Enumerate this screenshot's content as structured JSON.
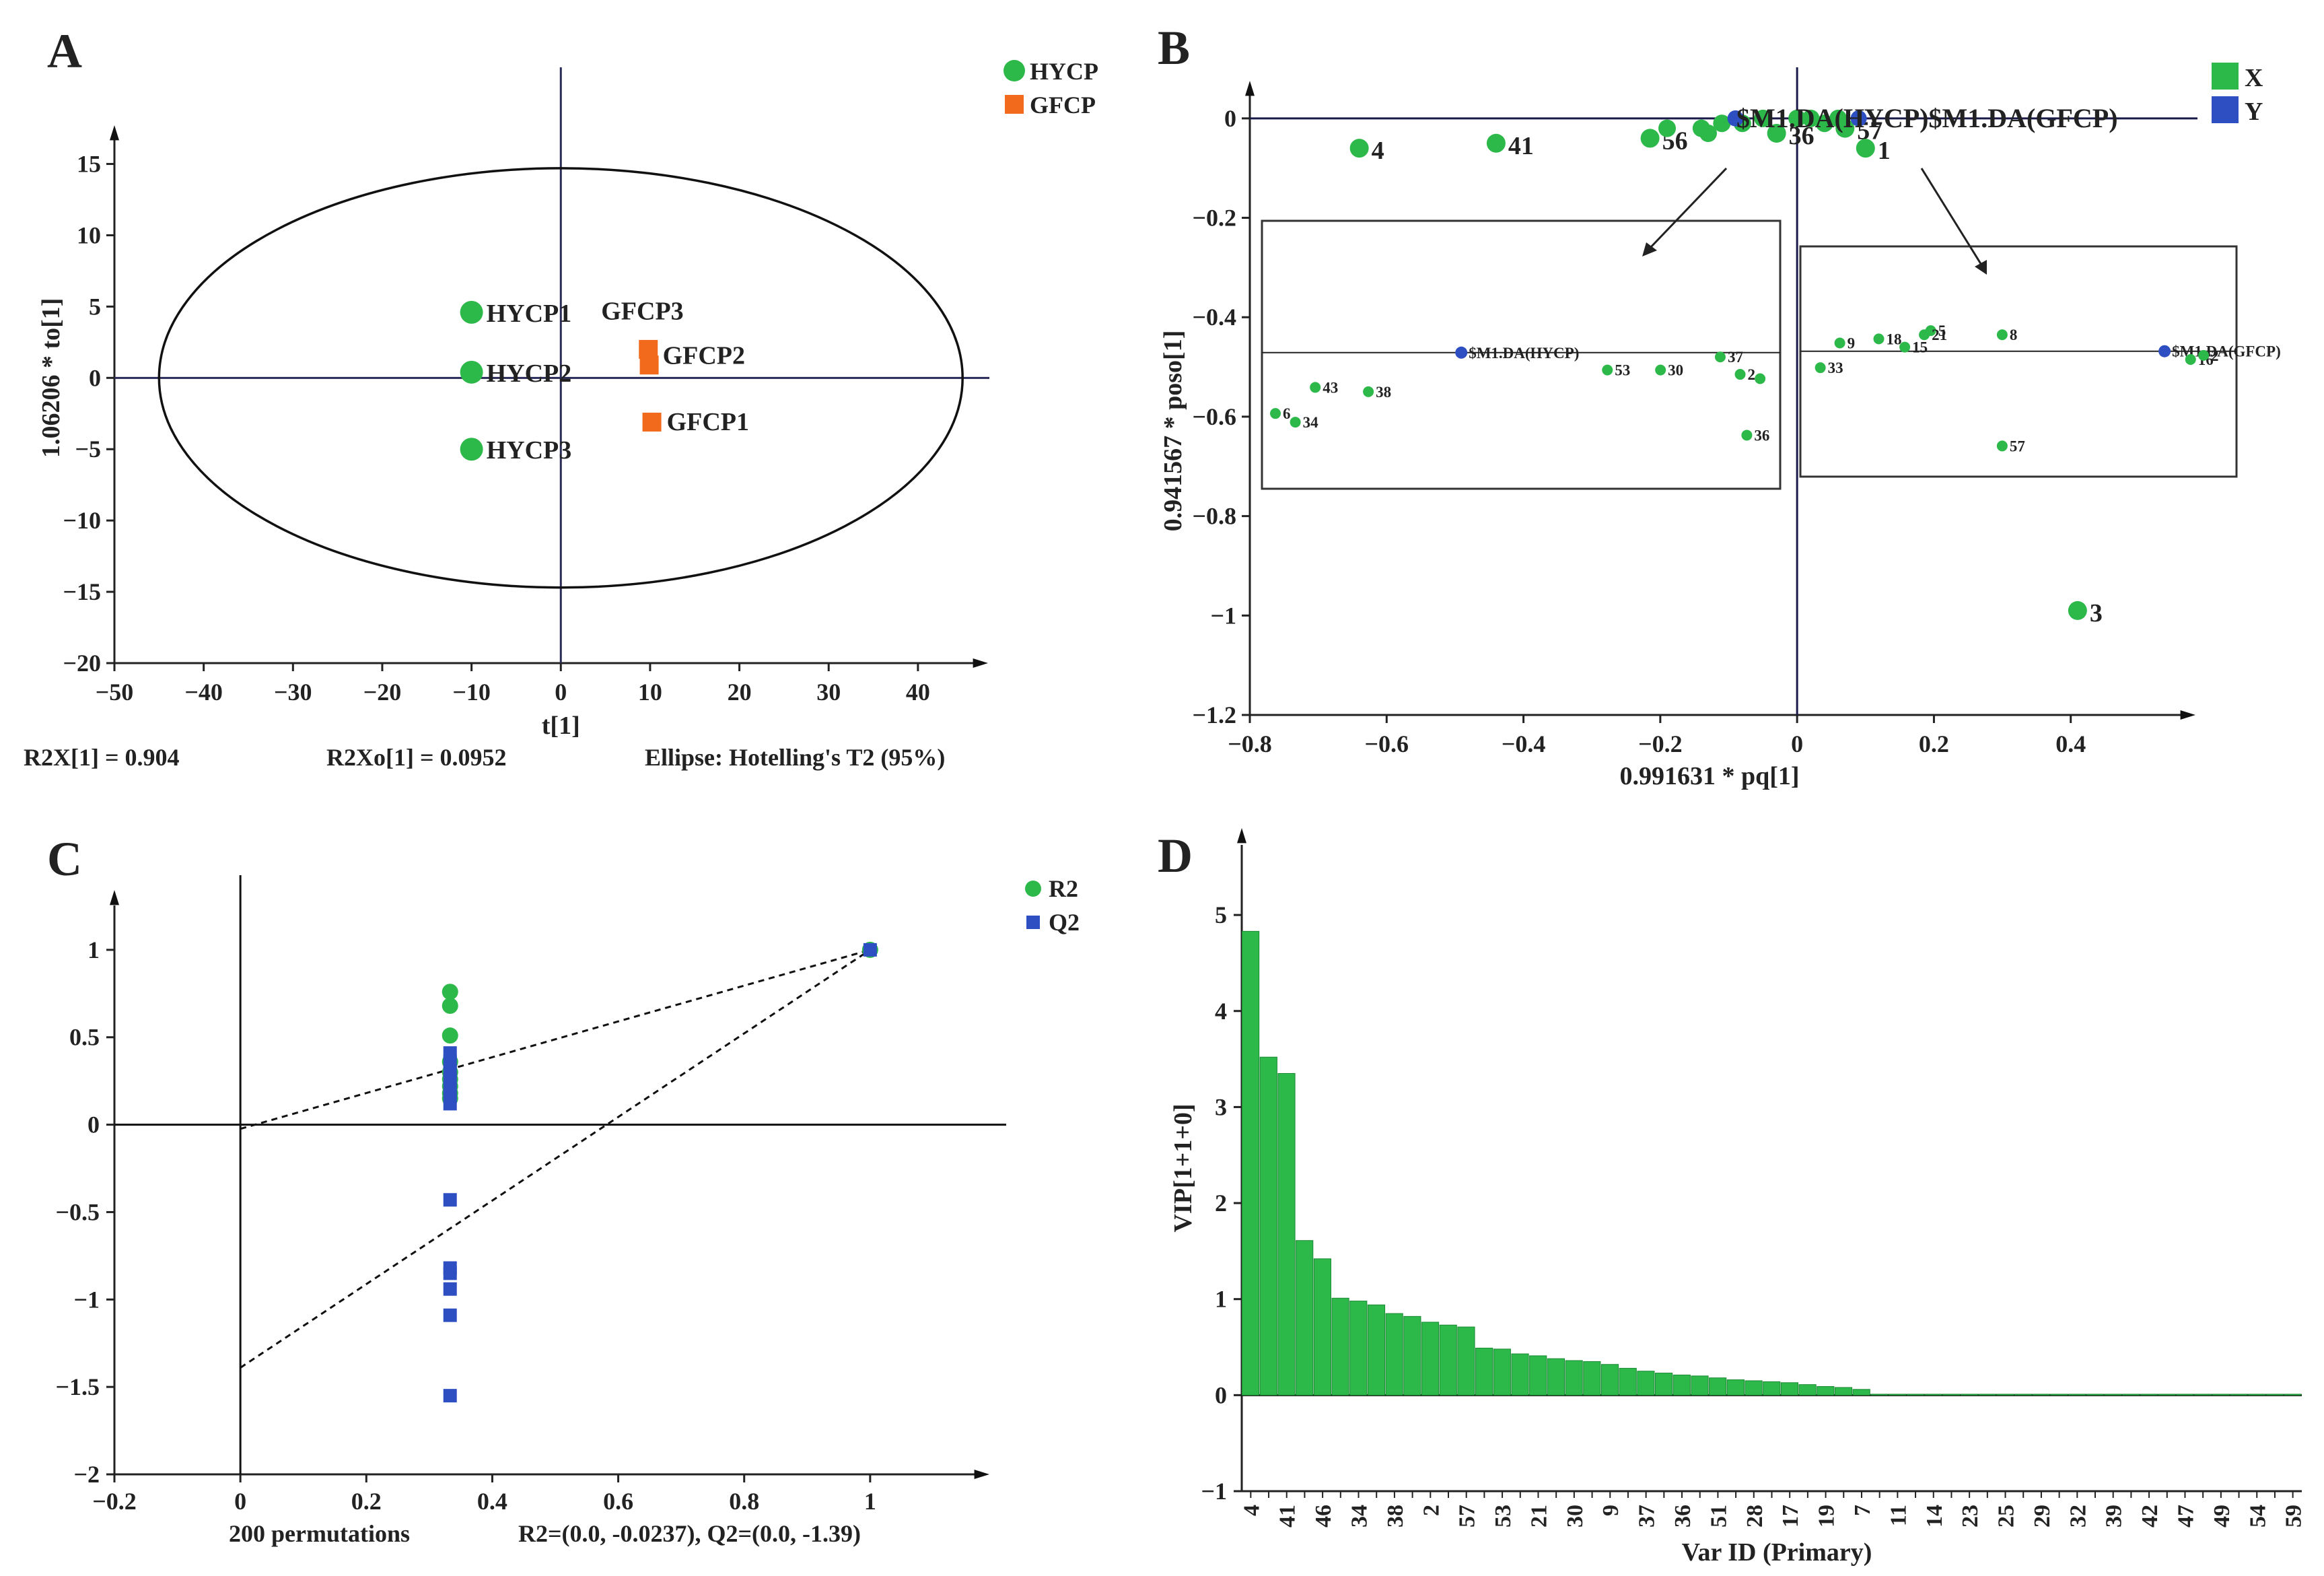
{
  "colors": {
    "green": "#2db84a",
    "green_dark": "#1f7f35",
    "orange": "#f26b1d",
    "orange_text": "#d2541a",
    "blue": "#2e4fc2",
    "blue_text": "#2a3f9a",
    "axis": "#222222",
    "box": "#333333"
  },
  "chart_data": [
    {
      "panel": "A",
      "type": "scatter",
      "xlabel": "t[1]",
      "ylabel": "1.06206 * to[1]",
      "xlim": [
        -50,
        48
      ],
      "ylim": [
        -20,
        18
      ],
      "xticks": [
        -50,
        -40,
        -30,
        -20,
        -10,
        0,
        10,
        20,
        30,
        40
      ],
      "xtick_labels": [
        "−50",
        "−40",
        "−30",
        "−20",
        "−10",
        "0",
        "10",
        "20",
        "30",
        "40"
      ],
      "yticks": [
        -20,
        -15,
        -10,
        -5,
        0,
        5,
        10,
        15
      ],
      "ytick_labels": [
        "−20",
        "−15",
        "−10",
        "−5",
        "0",
        "5",
        "10",
        "15"
      ],
      "ellipse": {
        "cx": 0,
        "cy": 0,
        "rx": 45,
        "ry": 14.7
      },
      "legend": [
        {
          "label": "HYCP",
          "marker": "circle",
          "color": "#2db84a"
        },
        {
          "label": "GFCP",
          "marker": "square",
          "color": "#f26b1d"
        }
      ],
      "series": [
        {
          "name": "HYCP",
          "marker": "circle",
          "points": [
            {
              "label": "HYCP1",
              "x": -10,
              "y": 4.6
            },
            {
              "label": "HYCP2",
              "x": -10,
              "y": 0.4
            },
            {
              "label": "HYCP3",
              "x": -10,
              "y": -5
            }
          ]
        },
        {
          "name": "GFCP",
          "marker": "square",
          "points": [
            {
              "label": "GFCP3",
              "x": 9.8,
              "y": 2.0
            },
            {
              "label": "GFCP2",
              "x": 9.9,
              "y": 0.9
            },
            {
              "label": "GFCP1",
              "x": 10.2,
              "y": -3.1
            }
          ]
        }
      ],
      "footer": [
        "R2X[1] = 0.904",
        "R2Xo[1] = 0.0952",
        "Ellipse: Hotelling's T2 (95%)"
      ]
    },
    {
      "panel": "B",
      "type": "scatter",
      "xlabel": "0.991631 * pq[1]",
      "ylabel": "0.941567 * poso[1]",
      "xlim": [
        -0.8,
        0.6
      ],
      "ylim": [
        -1.2,
        0.1
      ],
      "xticks": [
        -0.8,
        -0.6,
        -0.4,
        -0.2,
        0,
        0.2,
        0.4
      ],
      "xtick_labels": [
        "−0.8",
        "−0.6",
        "−0.4",
        "−0.2",
        "0",
        "0.2",
        "0.4"
      ],
      "yticks": [
        -1.2,
        -1.0,
        -0.8,
        -0.6,
        -0.4,
        -0.2,
        0
      ],
      "ytick_labels": [
        "−1.2",
        "−1",
        "−0.8",
        "−0.6",
        "−0.4",
        "−0.2",
        "0"
      ],
      "legend": [
        {
          "label": "X",
          "color": "#2db84a"
        },
        {
          "label": "Y",
          "color": "#2e4fc2"
        }
      ],
      "x_points": [
        {
          "label": "4",
          "x": -0.64,
          "y": -0.06
        },
        {
          "label": "41",
          "x": -0.44,
          "y": -0.05
        },
        {
          "label": "56",
          "x": -0.215,
          "y": -0.04
        },
        {
          "label": "",
          "x": -0.19,
          "y": -0.02
        },
        {
          "label": "",
          "x": -0.14,
          "y": -0.02
        },
        {
          "label": "",
          "x": -0.13,
          "y": -0.03
        },
        {
          "label": "",
          "x": -0.11,
          "y": -0.01
        },
        {
          "label": "",
          "x": -0.08,
          "y": -0.01
        },
        {
          "label": "",
          "x": -0.05,
          "y": 0.0
        },
        {
          "label": "36",
          "x": -0.03,
          "y": -0.03
        },
        {
          "label": "",
          "x": 0.0,
          "y": 0.0
        },
        {
          "label": "",
          "x": 0.02,
          "y": 0.0
        },
        {
          "label": "",
          "x": 0.04,
          "y": -0.01
        },
        {
          "label": "",
          "x": 0.06,
          "y": 0.0
        },
        {
          "label": "57",
          "x": 0.07,
          "y": -0.02
        },
        {
          "label": "1",
          "x": 0.1,
          "y": -0.06
        },
        {
          "label": "3",
          "x": 0.41,
          "y": -0.99
        }
      ],
      "y_points": [
        {
          "label": "$M1.DA(HYCP)",
          "x": -0.09,
          "y": 0.0
        },
        {
          "label": "$M1.DA(GFCP)",
          "x": 0.09,
          "y": 0.0
        }
      ],
      "overlay_label": "$M1.DA(HYCP)$M1.DA(GFCP)",
      "zoom_left": {
        "xlim": [
          -0.76,
          -0.02
        ],
        "ylim": [
          -0.7,
          -0.13
        ],
        "points": [
          {
            "label": "$M1.DA(HYCP)",
            "x": -0.48,
            "y": -0.41,
            "kind": "Y"
          },
          {
            "label": "43",
            "x": -0.7,
            "y": -0.49
          },
          {
            "label": "38",
            "x": -0.62,
            "y": -0.5
          },
          {
            "label": "6",
            "x": -0.76,
            "y": -0.55
          },
          {
            "label": "34",
            "x": -0.73,
            "y": -0.57
          },
          {
            "label": "53",
            "x": -0.26,
            "y": -0.45
          },
          {
            "label": "30",
            "x": -0.18,
            "y": -0.45
          },
          {
            "label": "37",
            "x": -0.09,
            "y": -0.42
          },
          {
            "label": "2",
            "x": -0.06,
            "y": -0.46
          },
          {
            "label": "",
            "x": -0.03,
            "y": -0.47
          },
          {
            "label": "36",
            "x": -0.05,
            "y": -0.6
          }
        ]
      },
      "zoom_right": {
        "xlim": [
          0.02,
          0.65
        ],
        "ylim": [
          -0.69,
          -0.18
        ],
        "points": [
          {
            "label": "9",
            "x": 0.06,
            "y": -0.39
          },
          {
            "label": "33",
            "x": 0.03,
            "y": -0.45
          },
          {
            "label": "18",
            "x": 0.12,
            "y": -0.38
          },
          {
            "label": "15",
            "x": 0.16,
            "y": -0.4
          },
          {
            "label": "5",
            "x": 0.2,
            "y": -0.36
          },
          {
            "label": "21",
            "x": 0.19,
            "y": -0.37
          },
          {
            "label": "8",
            "x": 0.31,
            "y": -0.37
          },
          {
            "label": "$M1.DA(GFCP)",
            "x": 0.56,
            "y": -0.41,
            "kind": "Y"
          },
          {
            "label": "16",
            "x": 0.6,
            "y": -0.43
          },
          {
            "label": "2",
            "x": 0.62,
            "y": -0.42
          },
          {
            "label": "57",
            "x": 0.31,
            "y": -0.64
          }
        ]
      }
    },
    {
      "panel": "C",
      "type": "scatter",
      "xlim": [
        -0.2,
        1.2
      ],
      "ylim": [
        -2,
        1.35
      ],
      "xticks": [
        -0.2,
        0,
        0.2,
        0.4,
        0.6,
        0.8,
        1
      ],
      "xtick_labels": [
        "−0.2",
        "0",
        "0.2",
        "0.4",
        "0.6",
        "0.8",
        "1"
      ],
      "yticks": [
        -2,
        -1.5,
        -1,
        -0.5,
        0,
        0.5,
        1
      ],
      "ytick_labels": [
        "−2",
        "−1.5",
        "−1",
        "−0.5",
        "0",
        "0.5",
        "1"
      ],
      "legend": [
        {
          "label": "R2",
          "marker": "circle",
          "color": "#2db84a"
        },
        {
          "label": "Q2",
          "marker": "square",
          "color": "#2e4fc2"
        }
      ],
      "series": [
        {
          "name": "R2",
          "x": [
            0.333,
            0.333,
            0.333,
            0.333,
            0.333,
            0.333,
            0.333,
            0.333,
            0.333,
            1.0
          ],
          "y": [
            0.76,
            0.68,
            0.51,
            0.36,
            0.3,
            0.26,
            0.22,
            0.18,
            0.15,
            1.0
          ]
        },
        {
          "name": "Q2",
          "x": [
            0.333,
            0.333,
            0.333,
            0.333,
            0.333,
            0.333,
            0.333,
            0.333,
            0.333,
            0.333,
            0.333,
            0.333,
            0.333,
            1.0
          ],
          "y": [
            0.41,
            0.36,
            0.31,
            0.26,
            0.2,
            0.16,
            0.12,
            -0.43,
            -0.82,
            -0.85,
            -0.94,
            -1.09,
            -1.55,
            1.0
          ]
        }
      ],
      "regression_lines": [
        {
          "name": "R2",
          "from": [
            0,
            -0.0237
          ],
          "to": [
            1,
            1
          ]
        },
        {
          "name": "Q2",
          "from": [
            0,
            -1.39
          ],
          "to": [
            1,
            1
          ]
        }
      ],
      "footer": [
        "200 permutations",
        "R2=(0.0, -0.0237), Q2=(0.0, -1.39)"
      ]
    },
    {
      "panel": "D",
      "type": "bar",
      "xlabel": "Var ID (Primary)",
      "ylabel": "VIP[1+1+0]",
      "ylim": [
        -1,
        5.8
      ],
      "yticks": [
        -1,
        0,
        1,
        2,
        3,
        4,
        5
      ],
      "ytick_labels": [
        "−1",
        "0",
        "1",
        "2",
        "3",
        "4",
        "5"
      ],
      "categories": [
        "4",
        "",
        "41",
        "",
        "46",
        "",
        "34",
        "",
        "38",
        "",
        "2",
        "",
        "57",
        "",
        "53",
        "",
        "21",
        "",
        "30",
        "",
        "9",
        "",
        "37",
        "",
        "36",
        "",
        "51",
        "",
        "28",
        "",
        "17",
        "",
        "19",
        "",
        "7",
        "",
        "11",
        "",
        "14",
        "",
        "23",
        "",
        "25",
        "",
        "29",
        "",
        "32",
        "",
        "39",
        "",
        "42",
        "",
        "47",
        "",
        "49",
        "",
        "54",
        "",
        "59"
      ],
      "values": [
        4.83,
        3.52,
        3.35,
        1.61,
        1.42,
        1.01,
        0.98,
        0.94,
        0.85,
        0.82,
        0.76,
        0.73,
        0.71,
        0.49,
        0.48,
        0.43,
        0.41,
        0.38,
        0.36,
        0.35,
        0.32,
        0.28,
        0.25,
        0.23,
        0.21,
        0.2,
        0.18,
        0.16,
        0.15,
        0.14,
        0.13,
        0.11,
        0.09,
        0.08,
        0.06,
        0.01,
        0.01,
        0.01,
        0.01,
        0.01,
        0.01,
        0.01,
        0.01,
        0.01,
        0.01,
        0.01,
        0.01,
        0.01,
        0.01,
        0.01,
        0.01,
        0.01,
        0.01,
        0.01,
        0.01,
        0.01,
        0.01,
        0.01,
        0.01
      ]
    }
  ]
}
